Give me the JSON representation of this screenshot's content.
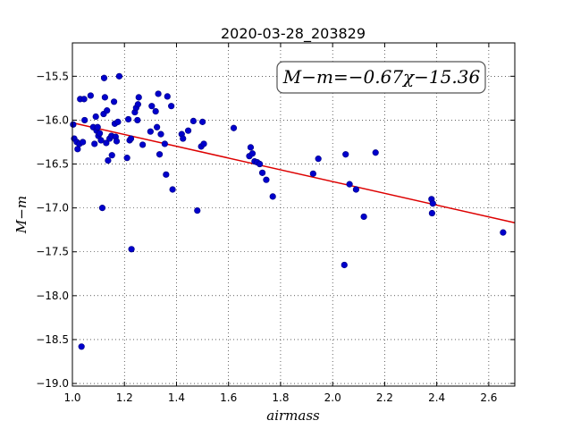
{
  "chart_data": {
    "type": "scatter",
    "title": "2020-03-28_203829",
    "xlabel": "airmass",
    "ylabel": "M−m",
    "xlim": [
      1.0,
      2.7
    ],
    "ylim": [
      -19.03,
      -15.12
    ],
    "y_inverted": true,
    "grid": true,
    "x_ticks": [
      1.0,
      1.2,
      1.4,
      1.6,
      1.8,
      2.0,
      2.2,
      2.4,
      2.6
    ],
    "x_tick_labels": [
      "1.0",
      "1.2",
      "1.4",
      "1.6",
      "1.8",
      "2.0",
      "2.2",
      "2.4",
      "2.6"
    ],
    "y_ticks": [
      -15.5,
      -16.0,
      -16.5,
      -17.0,
      -17.5,
      -18.0,
      -18.5,
      -19.0
    ],
    "y_tick_labels": [
      "−15.5",
      "−16.0",
      "−16.5",
      "−17.0",
      "−17.5",
      "−18.0",
      "−18.5",
      "−19.0"
    ],
    "annotation": "M−m=−0.67χ−15.36",
    "annotation_position": "top-right",
    "point_color": "#0000cc",
    "fit_color": "#dd0000",
    "fit": {
      "slope": -0.67,
      "intercept": -15.36,
      "x_range": [
        1.0,
        2.7
      ]
    },
    "series": [
      {
        "points": [
          [
            1.003,
            -16.05
          ],
          [
            1.007,
            -16.21
          ],
          [
            1.017,
            -16.25
          ],
          [
            1.02,
            -16.33
          ],
          [
            1.027,
            -16.27
          ],
          [
            1.03,
            -15.76
          ],
          [
            1.035,
            -18.58
          ],
          [
            1.04,
            -16.25
          ],
          [
            1.045,
            -15.76
          ],
          [
            1.047,
            -16.0
          ],
          [
            1.07,
            -15.72
          ],
          [
            1.08,
            -16.08
          ],
          [
            1.085,
            -16.27
          ],
          [
            1.09,
            -15.96
          ],
          [
            1.093,
            -16.12
          ],
          [
            1.097,
            -16.08
          ],
          [
            1.1,
            -16.18
          ],
          [
            1.105,
            -16.15
          ],
          [
            1.11,
            -16.23
          ],
          [
            1.115,
            -17.0
          ],
          [
            1.12,
            -15.93
          ],
          [
            1.122,
            -15.52
          ],
          [
            1.125,
            -15.74
          ],
          [
            1.13,
            -16.26
          ],
          [
            1.133,
            -15.89
          ],
          [
            1.137,
            -16.46
          ],
          [
            1.143,
            -16.21
          ],
          [
            1.15,
            -16.18
          ],
          [
            1.152,
            -16.4
          ],
          [
            1.16,
            -15.79
          ],
          [
            1.163,
            -16.04
          ],
          [
            1.166,
            -16.19
          ],
          [
            1.17,
            -16.24
          ],
          [
            1.175,
            -16.02
          ],
          [
            1.18,
            -15.5
          ],
          [
            1.21,
            -16.43
          ],
          [
            1.215,
            -15.99
          ],
          [
            1.22,
            -16.23
          ],
          [
            1.225,
            -16.21
          ],
          [
            1.227,
            -17.47
          ],
          [
            1.24,
            -15.91
          ],
          [
            1.245,
            -15.86
          ],
          [
            1.25,
            -16.0
          ],
          [
            1.252,
            -15.82
          ],
          [
            1.255,
            -15.74
          ],
          [
            1.27,
            -16.28
          ],
          [
            1.3,
            -16.13
          ],
          [
            1.305,
            -15.84
          ],
          [
            1.32,
            -15.9
          ],
          [
            1.325,
            -16.08
          ],
          [
            1.33,
            -15.7
          ],
          [
            1.335,
            -16.39
          ],
          [
            1.34,
            -16.16
          ],
          [
            1.355,
            -16.27
          ],
          [
            1.36,
            -16.62
          ],
          [
            1.365,
            -15.73
          ],
          [
            1.38,
            -15.84
          ],
          [
            1.385,
            -16.79
          ],
          [
            1.42,
            -16.16
          ],
          [
            1.425,
            -16.21
          ],
          [
            1.445,
            -16.12
          ],
          [
            1.465,
            -16.01
          ],
          [
            1.48,
            -17.03
          ],
          [
            1.495,
            -16.3
          ],
          [
            1.5,
            -16.02
          ],
          [
            1.505,
            -16.27
          ],
          [
            1.62,
            -16.09
          ],
          [
            1.68,
            -16.41
          ],
          [
            1.685,
            -16.31
          ],
          [
            1.692,
            -16.38
          ],
          [
            1.7,
            -16.47
          ],
          [
            1.71,
            -16.48
          ],
          [
            1.72,
            -16.5
          ],
          [
            1.73,
            -16.6
          ],
          [
            1.745,
            -16.68
          ],
          [
            1.77,
            -16.87
          ],
          [
            1.925,
            -16.61
          ],
          [
            1.945,
            -16.44
          ],
          [
            2.045,
            -17.65
          ],
          [
            2.05,
            -16.39
          ],
          [
            2.065,
            -16.73
          ],
          [
            2.09,
            -16.79
          ],
          [
            2.12,
            -17.1
          ],
          [
            2.165,
            -16.37
          ],
          [
            2.38,
            -16.9
          ],
          [
            2.382,
            -17.06
          ],
          [
            2.385,
            -16.95
          ],
          [
            2.655,
            -17.28
          ]
        ]
      }
    ]
  }
}
